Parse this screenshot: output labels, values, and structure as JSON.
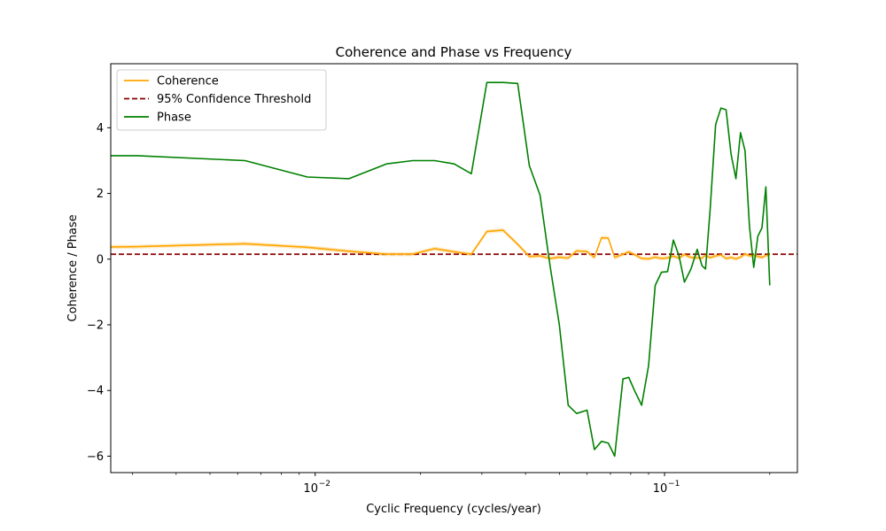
{
  "chart_data": {
    "type": "line",
    "title": "Coherence and Phase vs Frequency",
    "xlabel": "Cyclic Frequency (cycles/year)",
    "ylabel": "Coherence / Phase",
    "xscale": "log",
    "xlim": [
      0.0026,
      0.24
    ],
    "ylim": [
      -6.5,
      5.95
    ],
    "yticks": [
      -6,
      -4,
      -2,
      0,
      2,
      4
    ],
    "ytick_labels": [
      "−6",
      "−4",
      "−2",
      "0",
      "2",
      "4"
    ],
    "xticks": [
      0.01,
      0.1
    ],
    "xtick_labels": [
      "10",
      "10"
    ],
    "xtick_exponents": [
      "−2",
      "−1"
    ],
    "grid": false,
    "legend_position": "top-left",
    "series": [
      {
        "name": "Coherence",
        "style": "solid",
        "color": "#ffa500",
        "band_color": "#ffa500",
        "x": [
          0.0026,
          0.0031,
          0.0063,
          0.0095,
          0.0125,
          0.016,
          0.019,
          0.022,
          0.025,
          0.028,
          0.031,
          0.0345,
          0.038,
          0.041,
          0.044,
          0.047,
          0.05,
          0.053,
          0.056,
          0.06,
          0.063,
          0.066,
          0.069,
          0.072,
          0.076,
          0.079,
          0.082,
          0.086,
          0.09,
          0.094,
          0.098,
          0.102,
          0.106,
          0.11,
          0.114,
          0.119,
          0.124,
          0.128,
          0.131,
          0.135,
          0.14,
          0.145,
          0.15,
          0.155,
          0.16,
          0.165,
          0.17,
          0.175,
          0.18,
          0.185,
          0.19,
          0.195,
          0.2
        ],
        "values": [
          0.37,
          0.38,
          0.47,
          0.36,
          0.24,
          0.15,
          0.15,
          0.32,
          0.22,
          0.15,
          0.84,
          0.88,
          0.45,
          0.08,
          0.1,
          0.02,
          0.06,
          0.03,
          0.25,
          0.23,
          0.05,
          0.65,
          0.64,
          0.05,
          0.15,
          0.22,
          0.14,
          0.02,
          0.01,
          0.06,
          0.02,
          0.04,
          0.09,
          0.03,
          0.14,
          0.05,
          0.04,
          0.03,
          0.12,
          0.04,
          0.1,
          0.13,
          0.02,
          0.05,
          0.01,
          0.06,
          0.16,
          0.1,
          0.12,
          0.08,
          0.05,
          0.11,
          0.13
        ],
        "band_halfwidth": 0.06
      },
      {
        "name": "95% Confidence Threshold",
        "style": "dashed",
        "color": "#8b0000",
        "y_constant": 0.15
      },
      {
        "name": "Phase",
        "style": "solid",
        "color": "#008000",
        "x": [
          0.0026,
          0.0031,
          0.0063,
          0.0095,
          0.0125,
          0.016,
          0.019,
          0.022,
          0.025,
          0.028,
          0.031,
          0.0345,
          0.038,
          0.041,
          0.044,
          0.047,
          0.05,
          0.053,
          0.056,
          0.06,
          0.063,
          0.066,
          0.069,
          0.072,
          0.076,
          0.079,
          0.082,
          0.086,
          0.09,
          0.094,
          0.098,
          0.102,
          0.106,
          0.11,
          0.114,
          0.119,
          0.124,
          0.128,
          0.131,
          0.135,
          0.14,
          0.145,
          0.15,
          0.155,
          0.16,
          0.165,
          0.17,
          0.175,
          0.18,
          0.185,
          0.19,
          0.195,
          0.2
        ],
        "values": [
          3.15,
          3.15,
          3.0,
          2.5,
          2.45,
          2.9,
          3.0,
          3.0,
          2.9,
          2.6,
          5.38,
          5.38,
          5.35,
          2.85,
          1.95,
          -0.2,
          -2.0,
          -4.45,
          -4.7,
          -4.6,
          -5.8,
          -5.55,
          -5.6,
          -6.0,
          -3.65,
          -3.6,
          -4.0,
          -4.45,
          -3.25,
          -0.8,
          -0.4,
          -0.38,
          0.58,
          0.1,
          -0.7,
          -0.3,
          0.3,
          -0.2,
          -0.3,
          1.5,
          4.1,
          4.6,
          4.55,
          3.2,
          2.45,
          3.85,
          3.3,
          1.0,
          -0.25,
          0.7,
          0.95,
          2.2,
          -0.8
        ]
      }
    ]
  }
}
